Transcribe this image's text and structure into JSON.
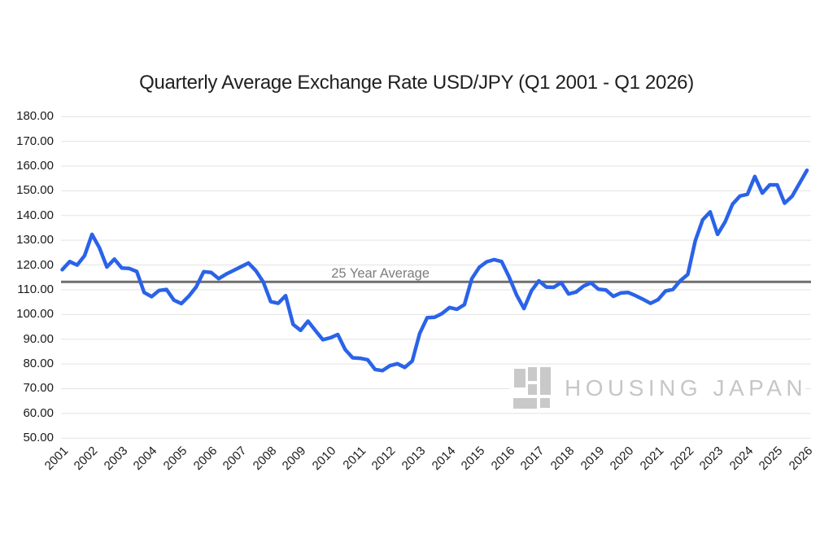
{
  "page": {
    "background": "#ffffff"
  },
  "title": "Quarterly Average Exchange Rate USD/JPY (Q1 2001 - Q1 2026)",
  "watermark": {
    "text": "HOUSING JAPAN",
    "logo": "housing-japan-logo"
  },
  "colors": {
    "series_blue": "#2a63e8",
    "gridline": "#e3e3e3",
    "reference_line": "#6e6e6e",
    "axis_label": "#1a1a1a",
    "title_text": "#1f1f1f",
    "watermark_gray": "#c6c6c6"
  },
  "chart_data": {
    "type": "line",
    "title": "Quarterly Average Exchange Rate USD/JPY (Q1 2001 - Q1 2026)",
    "x_start": "2001-Q1",
    "x_end": "2026-Q1",
    "x_step": "quarter",
    "x_tick_labels": [
      "2001",
      "2002",
      "2003",
      "2004",
      "2005",
      "2006",
      "2007",
      "2008",
      "2009",
      "2010",
      "2011",
      "2012",
      "2013",
      "2014",
      "2015",
      "2016",
      "2017",
      "2018",
      "2019",
      "2020",
      "2021",
      "2022",
      "2023",
      "2024",
      "2025",
      "2026"
    ],
    "y_ticks": [
      180,
      170,
      160,
      150,
      140,
      130,
      120,
      110,
      100,
      90,
      80,
      70,
      60,
      50
    ],
    "y_tick_labels": [
      "180.00",
      "170.00",
      "160.00",
      "150.00",
      "140.00",
      "130.00",
      "120.00",
      "110.00",
      "100.00",
      "90.00",
      "80.00",
      "70.00",
      "60.00",
      "50.00"
    ],
    "ylim": [
      50,
      180
    ],
    "grid": true,
    "legend": "none",
    "reference_line": {
      "label": "25 Year Average",
      "value": 113.2,
      "color": "#6e6e6e"
    },
    "series": [
      {
        "name": "USD/JPY quarterly average exchange rate",
        "color": "#2a63e8",
        "values": [
          118.1,
          121.4,
          120.0,
          123.8,
          132.4,
          126.9,
          119.2,
          122.4,
          118.8,
          118.6,
          117.4,
          108.9,
          107.2,
          109.7,
          110.1,
          105.8,
          104.4,
          107.4,
          111.2,
          117.3,
          117.0,
          114.5,
          116.3,
          117.8,
          119.3,
          120.8,
          117.7,
          113.1,
          105.2,
          104.5,
          107.6,
          96.0,
          93.6,
          97.3,
          93.5,
          89.8,
          90.6,
          91.9,
          85.8,
          82.5,
          82.3,
          81.7,
          77.8,
          77.3,
          79.3,
          80.1,
          78.6,
          81.2,
          92.3,
          98.7,
          98.9,
          100.4,
          102.8,
          102.1,
          104.0,
          114.5,
          119.1,
          121.3,
          122.2,
          121.4,
          115.2,
          107.9,
          102.4,
          109.6,
          113.6,
          111.1,
          111.0,
          112.9,
          108.3,
          109.1,
          111.5,
          112.8,
          110.2,
          109.9,
          107.3,
          108.7,
          108.9,
          107.6,
          106.1,
          104.5,
          106.0,
          109.5,
          110.1,
          113.7,
          116.2,
          129.8,
          138.3,
          141.5,
          132.4,
          137.4,
          144.6,
          147.9,
          148.6,
          155.8,
          149.1,
          152.4,
          152.4,
          145.0,
          147.8,
          153.0,
          158.3
        ]
      }
    ]
  }
}
